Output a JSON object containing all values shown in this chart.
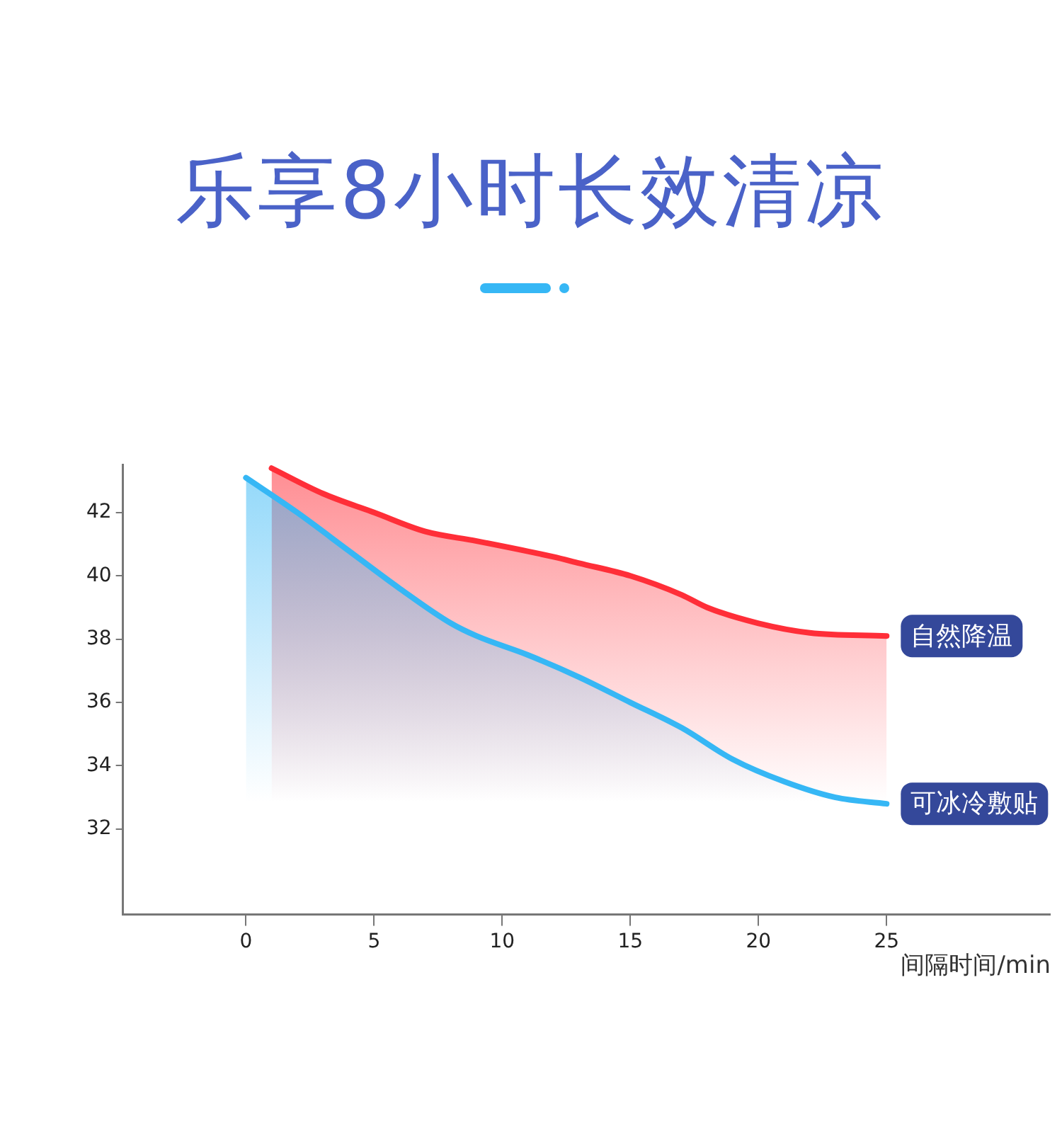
{
  "chart_data": {
    "type": "area",
    "title": "乐享8小时长效清凉",
    "xlabel": "间隔时间/min",
    "xlim": [
      -4.8,
      31.4
    ],
    "xticks": [
      0,
      5,
      10,
      15,
      20,
      25
    ],
    "ylim": [
      29.3,
      43.5
    ],
    "yticks": [
      32,
      34,
      36,
      38,
      40,
      42
    ],
    "grid": false,
    "legend": false,
    "series": [
      {
        "name": "自然降温",
        "color": "#ff2e38",
        "x": [
          1,
          3,
          5,
          7,
          9,
          12,
          13,
          15,
          17,
          18,
          20,
          22,
          25
        ],
        "values": [
          43.4,
          42.6,
          42.0,
          41.4,
          41.1,
          40.6,
          40.4,
          40.0,
          39.4,
          39.0,
          38.5,
          38.2,
          38.1
        ]
      },
      {
        "name": "可冰冷敷贴",
        "color": "#36b7f5",
        "x": [
          0,
          2,
          4,
          6,
          8,
          9,
          11,
          13,
          15,
          17,
          19,
          21,
          23,
          25
        ],
        "values": [
          43.1,
          42.0,
          40.8,
          39.6,
          38.5,
          38.1,
          37.5,
          36.8,
          36.0,
          35.2,
          34.2,
          33.5,
          33.0,
          32.8
        ]
      }
    ]
  }
}
